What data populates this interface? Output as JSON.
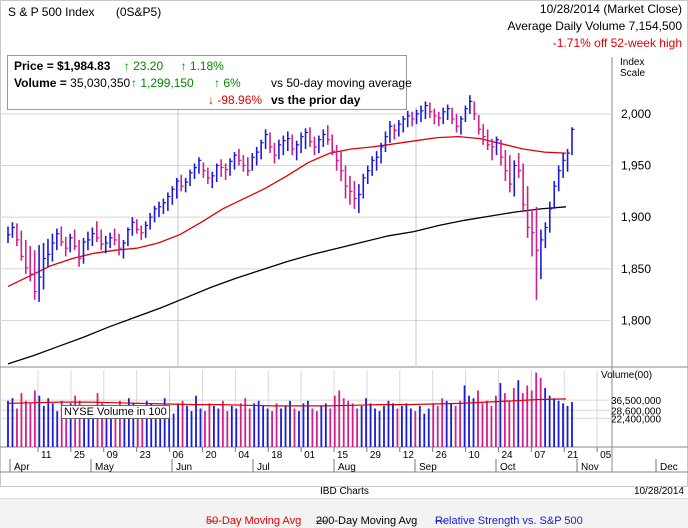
{
  "header": {
    "title": "S & P 500 Index",
    "symbol": "(0S&P5)",
    "date_status": "10/28/2014 (Market Close)",
    "avg_volume": "Average Daily Volume 7,154,500",
    "off_high": "-1.71% off 52-week high"
  },
  "info": {
    "price_label": "Price = ",
    "price_value": "$1,984.83",
    "price_change": "23.20",
    "price_change_pct": "1.18%",
    "volume_label": "Volume = ",
    "volume_value": "35,030,350",
    "volume_change": "1,299,150",
    "volume_change_pct": "6%",
    "vs_ma_label": "vs 50-day moving average",
    "prior_pct": "-98.96%",
    "vs_prior_label": "vs the prior day"
  },
  "scale_label": "Index Scale",
  "volume_panel_label": "Volume(00)",
  "nyse_label": "NYSE Volume in 100",
  "footer": {
    "source": "IBD Charts",
    "date": "10/28/2014"
  },
  "legend": {
    "ma50": "50-Day Moving Avg",
    "ma200": "200-Day Moving Avg",
    "rs": "Relative Strength vs. S&P 500"
  },
  "colors": {
    "up_bar": "#1a1ad8",
    "down_bar": "#d0208a",
    "ma50": "#e00000",
    "ma200": "#000000",
    "grid": "#d8d8d8"
  },
  "chart_data": [
    {
      "type": "line",
      "title": "S & P 500 Index",
      "ylabel": "Index Scale",
      "ylim": [
        1755,
        2055
      ],
      "y_ticks": [
        "1,800",
        "1,850",
        "1,900",
        "1,950",
        "2,000"
      ],
      "y_tick_values": [
        1800,
        1850,
        1900,
        1950,
        2000
      ],
      "x_ticks": [
        "11",
        "25",
        "09",
        "23",
        "06",
        "20",
        "04",
        "18",
        "01",
        "15",
        "29",
        "12",
        "26",
        "10",
        "24",
        "07",
        "21",
        "05"
      ],
      "x_month_labels": [
        "Apr",
        "May",
        "Jun",
        "Jul",
        "Aug",
        "Sep",
        "Oct",
        "Nov",
        "Dec"
      ],
      "grid": true,
      "series": [
        {
          "name": "Price (daily high/low/close)",
          "bars": [
            [
              1891,
              1875,
              1883
            ],
            [
              1895,
              1880,
              1890
            ],
            [
              1894,
              1872,
              1878
            ],
            [
              1887,
              1858,
              1862
            ],
            [
              1878,
              1845,
              1851
            ],
            [
              1872,
              1838,
              1845
            ],
            [
              1868,
              1820,
              1828
            ],
            [
              1873,
              1818,
              1842
            ],
            [
              1875,
              1830,
              1860
            ],
            [
              1879,
              1852,
              1864
            ],
            [
              1884,
              1857,
              1875
            ],
            [
              1889,
              1868,
              1884
            ],
            [
              1891,
              1872,
              1876
            ],
            [
              1881,
              1862,
              1870
            ],
            [
              1884,
              1866,
              1880
            ],
            [
              1888,
              1868,
              1872
            ],
            [
              1878,
              1852,
              1860
            ],
            [
              1880,
              1855,
              1876
            ],
            [
              1886,
              1868,
              1878
            ],
            [
              1890,
              1872,
              1884
            ],
            [
              1896,
              1876,
              1880
            ],
            [
              1888,
              1868,
              1874
            ],
            [
              1882,
              1865,
              1875
            ],
            [
              1885,
              1870,
              1880
            ],
            [
              1889,
              1873,
              1878
            ],
            [
              1884,
              1863,
              1870
            ],
            [
              1878,
              1860,
              1875
            ],
            [
              1890,
              1872,
              1888
            ],
            [
              1900,
              1882,
              1895
            ],
            [
              1898,
              1884,
              1888
            ],
            [
              1892,
              1878,
              1885
            ],
            [
              1896,
              1880,
              1892
            ],
            [
              1904,
              1888,
              1900
            ],
            [
              1911,
              1895,
              1908
            ],
            [
              1915,
              1900,
              1910
            ],
            [
              1918,
              1903,
              1914
            ],
            [
              1924,
              1906,
              1920
            ],
            [
              1930,
              1912,
              1927
            ],
            [
              1938,
              1918,
              1935
            ],
            [
              1941,
              1925,
              1930
            ],
            [
              1938,
              1924,
              1934
            ],
            [
              1946,
              1930,
              1943
            ],
            [
              1952,
              1937,
              1948
            ],
            [
              1958,
              1942,
              1955
            ],
            [
              1953,
              1938,
              1945
            ],
            [
              1948,
              1932,
              1938
            ],
            [
              1944,
              1928,
              1940
            ],
            [
              1952,
              1934,
              1950
            ],
            [
              1956,
              1939,
              1948
            ],
            [
              1952,
              1936,
              1946
            ],
            [
              1957,
              1940,
              1954
            ],
            [
              1963,
              1946,
              1960
            ],
            [
              1966,
              1950,
              1955
            ],
            [
              1960,
              1944,
              1950
            ],
            [
              1958,
              1940,
              1945
            ],
            [
              1962,
              1945,
              1958
            ],
            [
              1968,
              1950,
              1963
            ],
            [
              1975,
              1956,
              1972
            ],
            [
              1985,
              1966,
              1980
            ],
            [
              1982,
              1962,
              1968
            ],
            [
              1972,
              1952,
              1960
            ],
            [
              1975,
              1956,
              1970
            ],
            [
              1979,
              1960,
              1974
            ],
            [
              1983,
              1964,
              1976
            ],
            [
              1980,
              1960,
              1966
            ],
            [
              1974,
              1955,
              1970
            ],
            [
              1982,
              1962,
              1978
            ],
            [
              1986,
              1966,
              1982
            ],
            [
              1987,
              1968,
              1973
            ],
            [
              1978,
              1960,
              1968
            ],
            [
              1979,
              1962,
              1975
            ],
            [
              1985,
              1968,
              1980
            ],
            [
              1989,
              1970,
              1975
            ],
            [
              1980,
              1960,
              1964
            ],
            [
              1970,
              1945,
              1955
            ],
            [
              1964,
              1935,
              1945
            ],
            [
              1950,
              1918,
              1930
            ],
            [
              1940,
              1912,
              1925
            ],
            [
              1935,
              1908,
              1918
            ],
            [
              1932,
              1904,
              1922
            ],
            [
              1942,
              1918,
              1938
            ],
            [
              1950,
              1932,
              1945
            ],
            [
              1959,
              1940,
              1955
            ],
            [
              1964,
              1945,
              1958
            ],
            [
              1972,
              1952,
              1968
            ],
            [
              1983,
              1963,
              1978
            ],
            [
              1993,
              1972,
              1988
            ],
            [
              1990,
              1975,
              1984
            ],
            [
              1994,
              1978,
              1990
            ],
            [
              1998,
              1982,
              1995
            ],
            [
              2003,
              1987,
              1998
            ],
            [
              2002,
              1988,
              1995
            ],
            [
              2004,
              1990,
              2000
            ],
            [
              2008,
              1992,
              2003
            ],
            [
              2012,
              1995,
              2008
            ],
            [
              2011,
              1996,
              2002
            ],
            [
              2005,
              1990,
              1998
            ],
            [
              2002,
              1988,
              1996
            ],
            [
              2006,
              1990,
              2002
            ],
            [
              2009,
              1994,
              2005
            ],
            [
              2006,
              1990,
              1995
            ],
            [
              2000,
              1982,
              1988
            ],
            [
              1998,
              1980,
              1995
            ],
            [
              2008,
              1992,
              2005
            ],
            [
              2018,
              2000,
              2012
            ],
            [
              2012,
              1994,
              2000
            ],
            [
              1999,
              1980,
              1985
            ],
            [
              1990,
              1970,
              1978
            ],
            [
              1985,
              1965,
              1970
            ],
            [
              1976,
              1955,
              1968
            ],
            [
              1978,
              1960,
              1975
            ],
            [
              1975,
              1950,
              1958
            ],
            [
              1965,
              1935,
              1945
            ],
            [
              1960,
              1924,
              1932
            ],
            [
              1955,
              1920,
              1950
            ],
            [
              1962,
              1938,
              1945
            ],
            [
              1952,
              1906,
              1912
            ],
            [
              1930,
              1880,
              1890
            ],
            [
              1908,
              1862,
              1885
            ],
            [
              1910,
              1820,
              1868
            ],
            [
              1888,
              1840,
              1878
            ],
            [
              1895,
              1870,
              1890
            ],
            [
              1915,
              1885,
              1908
            ],
            [
              1935,
              1908,
              1930
            ],
            [
              1950,
              1925,
              1945
            ],
            [
              1962,
              1938,
              1955
            ],
            [
              1966,
              1944,
              1962
            ],
            [
              1987,
              1960,
              1985
            ]
          ]
        },
        {
          "name": "50-Day Moving Avg",
          "values": [
            1833,
            1843,
            1853,
            1860,
            1865,
            1868,
            1870,
            1875,
            1883,
            1895,
            1908,
            1918,
            1928,
            1940,
            1953,
            1962,
            1966,
            1968,
            1971,
            1974,
            1977,
            1978,
            1976,
            1971,
            1966,
            1963,
            1962
          ]
        },
        {
          "name": "200-Day Moving Avg",
          "values": [
            1758,
            1766,
            1775,
            1784,
            1794,
            1803,
            1812,
            1822,
            1832,
            1841,
            1849,
            1857,
            1864,
            1870,
            1876,
            1882,
            1886,
            1892,
            1897,
            1901,
            1905,
            1908,
            1910
          ]
        }
      ]
    },
    {
      "type": "bar",
      "title": "Volume(00)",
      "ylabel": "Volume(00)",
      "ylim": [
        0,
        60000000
      ],
      "y_ticks": [
        "36,500,000",
        "28,600,000",
        "22,400,000"
      ],
      "y_tick_values": [
        36500000,
        28600000,
        22400000
      ],
      "legend_label": "NYSE Volume in 100",
      "series": [
        {
          "name": "NYSE Volume",
          "values": [
            36,
            38,
            30,
            42,
            36,
            34,
            44,
            40,
            32,
            38,
            34,
            28,
            36,
            30,
            34,
            40,
            36,
            32,
            30,
            28,
            42,
            34,
            30,
            26,
            32,
            36,
            30,
            38,
            34,
            30,
            28,
            36,
            34,
            30,
            32,
            38,
            30,
            26,
            34,
            36,
            32,
            28,
            40,
            30,
            28,
            34,
            32,
            30,
            36,
            28,
            32,
            30,
            34,
            38,
            30,
            34,
            36,
            32,
            30,
            28,
            34,
            30,
            32,
            36,
            30,
            28,
            34,
            36,
            30,
            28,
            32,
            34,
            30,
            40,
            44,
            38,
            36,
            34,
            30,
            32,
            38,
            34,
            30,
            28,
            32,
            36,
            34,
            30,
            32,
            34,
            30,
            28,
            32,
            26,
            30,
            34,
            32,
            38,
            36,
            34,
            32,
            36,
            48,
            40,
            38,
            44,
            34,
            36,
            32,
            40,
            50,
            42,
            36,
            46,
            52,
            42,
            48,
            44,
            58,
            54,
            46,
            40,
            38,
            36,
            34,
            32,
            35
          ]
        },
        {
          "name": "50-Day Moving Avg",
          "values": [
            34,
            34.5,
            35,
            35,
            34.5,
            34,
            33.5,
            33,
            33,
            32.5,
            32,
            32,
            32,
            32.5,
            33,
            33,
            33.5,
            34,
            35,
            36,
            37,
            37.5
          ]
        }
      ]
    }
  ]
}
